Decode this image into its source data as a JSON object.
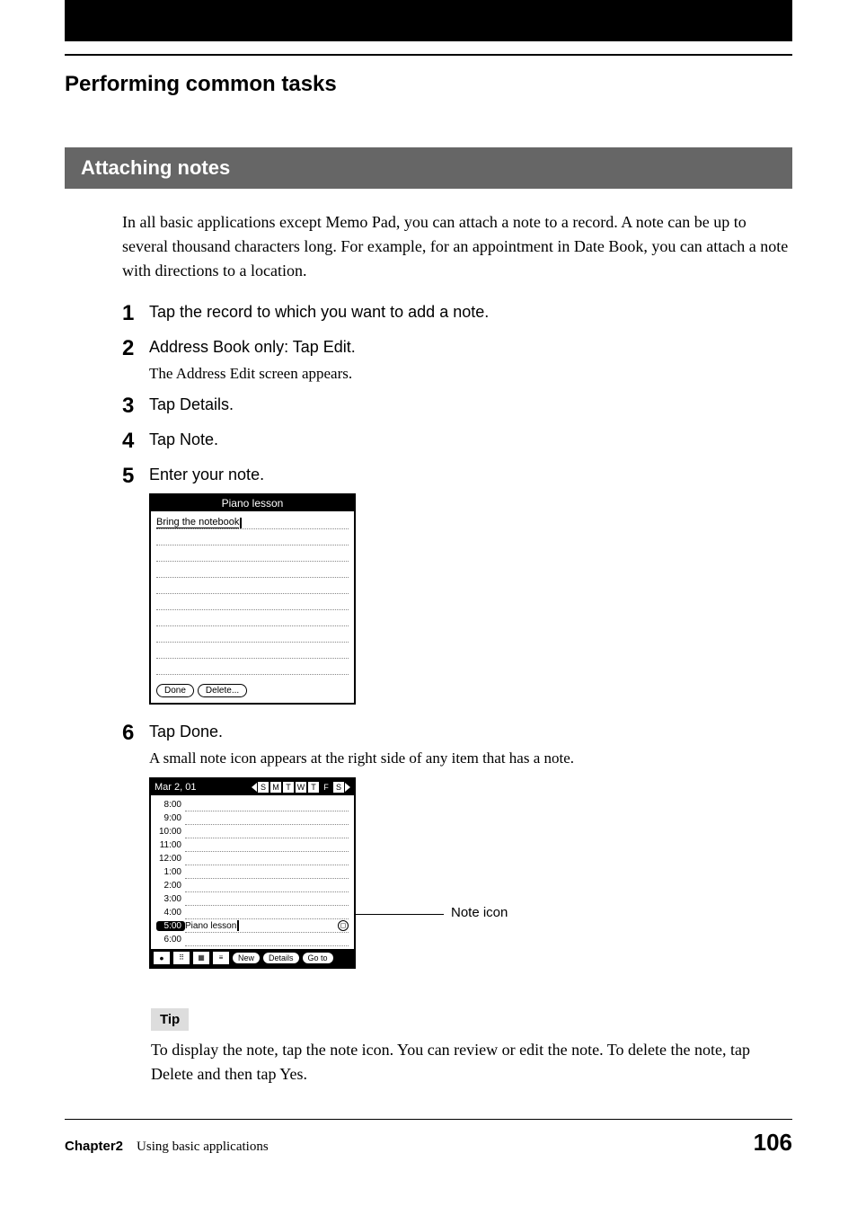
{
  "section_title": "Performing common tasks",
  "subsection_title": "Attaching notes",
  "intro_paragraph": "In all basic applications except Memo Pad, you can attach a note to a record. A note can be up to several thousand characters long. For example, for an appointment in Date Book, you can attach a note with directions to a location.",
  "steps": {
    "s1": {
      "num": "1",
      "title": "Tap the record to which you want to add a note."
    },
    "s2": {
      "num": "2",
      "title": "Address Book only: Tap Edit.",
      "sub": "The Address Edit screen appears."
    },
    "s3": {
      "num": "3",
      "title": "Tap Details."
    },
    "s4": {
      "num": "4",
      "title": "Tap Note."
    },
    "s5": {
      "num": "5",
      "title": "Enter your note."
    },
    "s6": {
      "num": "6",
      "title": "Tap Done.",
      "sub": "A small note icon appears at the right side of any item that has a note."
    }
  },
  "note_screen": {
    "title": "Piano lesson",
    "content": "Bring the notebook",
    "buttons": {
      "done": "Done",
      "delete": "Delete..."
    }
  },
  "datebook_screen": {
    "date": "Mar 2, 01",
    "days": [
      "S",
      "M",
      "T",
      "W",
      "T",
      "F",
      "S"
    ],
    "selected_day_index": 5,
    "times": [
      "8:00",
      "9:00",
      "10:00",
      "11:00",
      "12:00",
      "1:00",
      "2:00",
      "3:00",
      "4:00"
    ],
    "highlighted": {
      "time": "5:00",
      "label": "Piano lesson"
    },
    "after_time": "6:00",
    "footer_buttons": {
      "new": "New",
      "details": "Details",
      "goto": "Go to"
    }
  },
  "annotation": {
    "label": "Note icon"
  },
  "tip": {
    "label": "Tip",
    "text": "To display the note, tap the note icon. You can review or edit the note. To delete the note, tap Delete and then tap Yes."
  },
  "footer": {
    "chapter": "Chapter2",
    "chapter_text": "Using basic applications",
    "page": "106"
  },
  "colors": {
    "black": "#000000",
    "gray_bar": "#666666",
    "tip_bg": "#dddddd"
  }
}
